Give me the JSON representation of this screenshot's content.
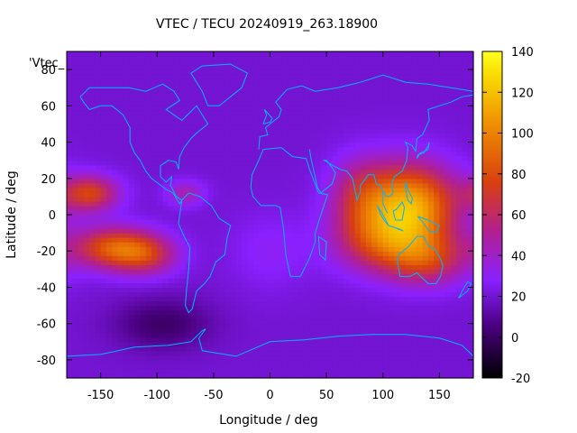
{
  "chart_data": {
    "type": "heatmap",
    "title": "VTEC / TECU 20240919_263.18900",
    "xlabel": "Longitude / deg",
    "ylabel": "Latitude / deg",
    "key_label": "'Vtec_",
    "xlim": [
      -180,
      180
    ],
    "ylim": [
      -90,
      90
    ],
    "x_ticks": [
      -150,
      -100,
      -50,
      0,
      50,
      100,
      150
    ],
    "y_ticks": [
      -80,
      -60,
      -40,
      -20,
      0,
      20,
      40,
      60,
      80
    ],
    "colorbar": {
      "range": [
        -20,
        140
      ],
      "ticks": [
        -20,
        0,
        20,
        40,
        60,
        80,
        100,
        120,
        140
      ],
      "palette": [
        "#000000",
        "#5a0090",
        "#8a20ff",
        "#b2208f",
        "#e45a00",
        "#f8c400",
        "#ffff00"
      ]
    },
    "coastline_color": "#00b4ff",
    "background_vtec": 20,
    "features": [
      {
        "region": "Pacific equatorial crest north",
        "lon": -160,
        "lat": 12,
        "vtec": 75
      },
      {
        "region": "Pacific equatorial crest south",
        "lon": -145,
        "lat": -18,
        "vtec": 85
      },
      {
        "region": "Pacific equatorial crest east",
        "lon": -100,
        "lat": -20,
        "vtec": 65
      },
      {
        "region": "Western Pacific / SE Asia peak",
        "lon": 125,
        "lat": 5,
        "vtec": 110
      },
      {
        "region": "Australia / Indian Ocean south crest",
        "lon": 115,
        "lat": -20,
        "vtec": 70
      },
      {
        "region": "South Pacific trough",
        "lon": -95,
        "lat": -60,
        "vtec": 2
      },
      {
        "region": "North Atlantic minor",
        "lon": -70,
        "lat": 15,
        "vtec": 45
      }
    ]
  }
}
